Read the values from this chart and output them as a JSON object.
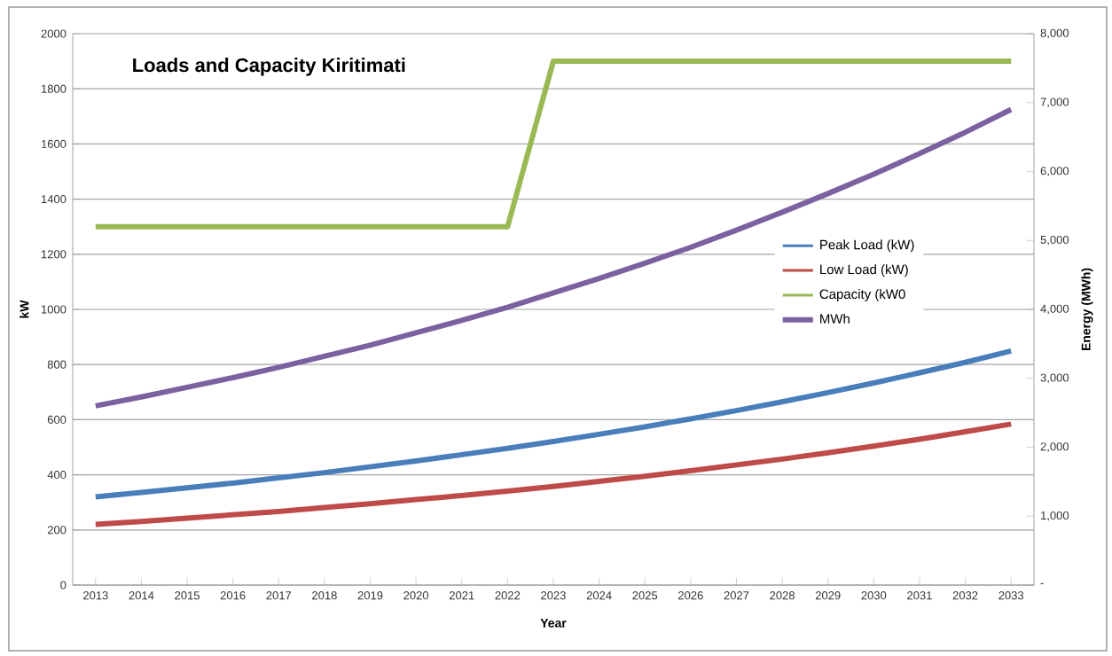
{
  "chart_data": {
    "type": "line",
    "title": "Loads and Capacity Kiritimati",
    "xlabel": "Year",
    "ylabel": "kW",
    "y2label": "Energy (MWh)",
    "categories": [
      "2013",
      "2014",
      "2015",
      "2016",
      "2017",
      "2018",
      "2019",
      "2020",
      "2021",
      "2022",
      "2023",
      "2024",
      "2025",
      "2026",
      "2027",
      "2028",
      "2029",
      "2030",
      "2031",
      "2032",
      "2033"
    ],
    "series": [
      {
        "name": "Peak Load (kW)",
        "color": "#4a7ebb",
        "values": [
          320,
          336,
          353,
          370,
          389,
          408,
          429,
          450,
          473,
          496,
          521,
          547,
          574,
          603,
          633,
          665,
          698,
          733,
          770,
          808,
          849
        ]
      },
      {
        "name": "Low Load (kW)",
        "color": "#be4b48",
        "values": [
          220,
          231,
          243,
          255,
          267,
          281,
          295,
          310,
          325,
          341,
          358,
          376,
          395,
          415,
          436,
          457,
          480,
          504,
          529,
          556,
          584
        ]
      },
      {
        "name": "Capacity (kW0",
        "color": "#98b954",
        "values": [
          1300,
          1300,
          1300,
          1300,
          1300,
          1300,
          1300,
          1300,
          1300,
          1300,
          1900,
          1900,
          1900,
          1900,
          1900,
          1900,
          1900,
          1900,
          1900,
          1900,
          1900
        ]
      },
      {
        "name": "MWh",
        "color": "#7d60a0",
        "axis": "y2",
        "values": [
          2600,
          2730,
          2870,
          3010,
          3160,
          3320,
          3480,
          3660,
          3840,
          4030,
          4240,
          4450,
          4670,
          4900,
          5150,
          5410,
          5680,
          5960,
          6260,
          6570,
          6900
        ]
      }
    ],
    "ylim": [
      0,
      2000
    ],
    "yticks": [
      0,
      200,
      400,
      600,
      800,
      1000,
      1200,
      1400,
      1600,
      1800,
      2000
    ],
    "y2lim": [
      0,
      8000
    ],
    "y2ticks": [
      {
        "value": 0,
        "label": "-"
      },
      {
        "value": 1000,
        "label": "1,000"
      },
      {
        "value": 2000,
        "label": "2,000"
      },
      {
        "value": 3000,
        "label": "3,000"
      },
      {
        "value": 4000,
        "label": "4,000"
      },
      {
        "value": 5000,
        "label": "5,000"
      },
      {
        "value": 6000,
        "label": "6,000"
      },
      {
        "value": 7000,
        "label": "7,000"
      },
      {
        "value": 8000,
        "label": "8,000"
      }
    ],
    "grid": "y",
    "legend": "right",
    "marker": "none",
    "line_style": "solid"
  }
}
